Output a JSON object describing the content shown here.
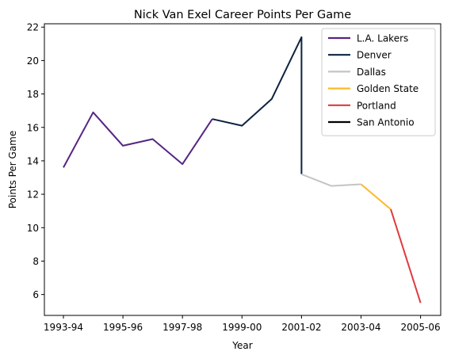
{
  "chart_data": {
    "type": "line",
    "title": "Nick Van Exel Career Points Per Game",
    "xlabel": "Year",
    "ylabel": "Points Per Game",
    "ylim": [
      4.75,
      22.2
    ],
    "y_ticks": [
      6,
      8,
      10,
      12,
      14,
      16,
      18,
      20,
      22
    ],
    "x_ticks": [
      "1993-94",
      "1995-96",
      "1997-98",
      "1999-00",
      "2001-02",
      "2003-04",
      "2005-06"
    ],
    "x_seasons": [
      "1993-94",
      "1994-95",
      "1995-96",
      "1996-97",
      "1997-98",
      "1998-99",
      "1999-00",
      "2000-01",
      "2001-02",
      "2002-03",
      "2003-04",
      "2004-05",
      "2005-06"
    ],
    "legend_position": "top-right",
    "grid": false,
    "series": [
      {
        "name": "L.A. Lakers",
        "color": "#552583",
        "x": [
          "1993-94",
          "1994-95",
          "1995-96",
          "1996-97",
          "1997-98",
          "1998-99"
        ],
        "values": [
          13.6,
          16.9,
          14.9,
          15.3,
          13.8,
          16.5
        ]
      },
      {
        "name": "Denver",
        "color": "#0e2240",
        "x": [
          "1998-99",
          "1999-00",
          "2000-01",
          "2001-02",
          "2001-02"
        ],
        "values": [
          16.5,
          16.1,
          17.7,
          21.4,
          13.2
        ]
      },
      {
        "name": "Dallas",
        "color": "#c4c4c4",
        "x": [
          "2001-02",
          "2002-03",
          "2003-04"
        ],
        "values": [
          13.2,
          12.5,
          12.6
        ]
      },
      {
        "name": "Golden State",
        "color": "#fdb927",
        "x": [
          "2003-04",
          "2004-05"
        ],
        "values": [
          12.6,
          11.1
        ]
      },
      {
        "name": "Portland",
        "color": "#e03a3e",
        "x": [
          "2004-05",
          "2005-06"
        ],
        "values": [
          11.1,
          5.5
        ]
      },
      {
        "name": "San Antonio",
        "color": "#000000",
        "x": [],
        "values": []
      }
    ]
  }
}
